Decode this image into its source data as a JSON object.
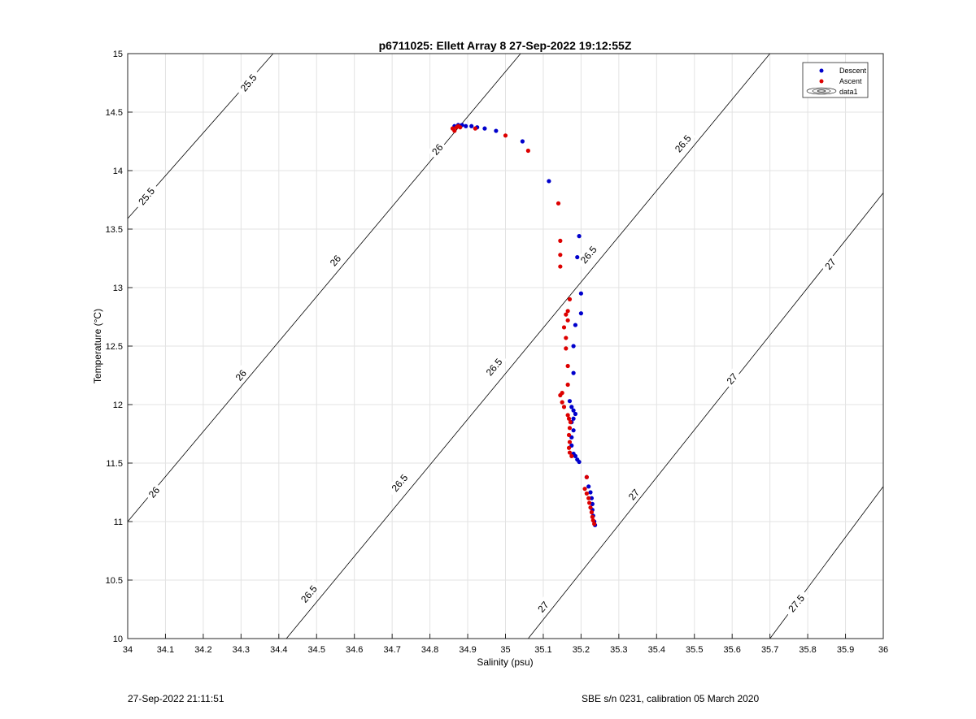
{
  "chart_data": {
    "type": "scatter",
    "title": "p6711025: Ellett Array 8 27-Sep-2022 19:12:55Z",
    "xlabel": "Salinity (psu)",
    "ylabel": "Temperature (°C)",
    "xlim": [
      34,
      36
    ],
    "ylim": [
      10,
      15
    ],
    "x_ticks": [
      "34",
      "34.1",
      "34.2",
      "34.3",
      "34.4",
      "34.5",
      "34.6",
      "34.7",
      "34.8",
      "34.9",
      "35",
      "35.1",
      "35.2",
      "35.3",
      "35.4",
      "35.5",
      "35.6",
      "35.7",
      "35.8",
      "35.9",
      "36"
    ],
    "y_ticks": [
      "10",
      "10.5",
      "11",
      "11.5",
      "12",
      "12.5",
      "13",
      "13.5",
      "14",
      "14.5",
      "15"
    ],
    "grid": true,
    "legend_position": "top-right",
    "legend": [
      "Descent",
      "Ascent",
      "data1"
    ],
    "colors": {
      "descent": "#0000cc",
      "ascent": "#dd0000",
      "contour": "#000000",
      "grid": "#e3e3e3"
    },
    "series": [
      {
        "name": "Descent",
        "points": [
          [
            34.865,
            14.38
          ],
          [
            34.875,
            14.39
          ],
          [
            34.885,
            14.39
          ],
          [
            34.895,
            14.38
          ],
          [
            34.91,
            14.38
          ],
          [
            34.925,
            14.37
          ],
          [
            34.945,
            14.36
          ],
          [
            34.975,
            14.34
          ],
          [
            35.045,
            14.25
          ],
          [
            35.115,
            13.91
          ],
          [
            35.195,
            13.44
          ],
          [
            35.19,
            13.26
          ],
          [
            35.2,
            12.95
          ],
          [
            35.2,
            12.78
          ],
          [
            35.185,
            12.68
          ],
          [
            35.18,
            12.5
          ],
          [
            35.18,
            12.27
          ],
          [
            35.17,
            12.03
          ],
          [
            35.175,
            11.98
          ],
          [
            35.18,
            11.95
          ],
          [
            35.185,
            11.92
          ],
          [
            35.18,
            11.88
          ],
          [
            35.175,
            11.85
          ],
          [
            35.18,
            11.78
          ],
          [
            35.175,
            11.72
          ],
          [
            35.175,
            11.65
          ],
          [
            35.18,
            11.58
          ],
          [
            35.185,
            11.56
          ],
          [
            35.19,
            11.53
          ],
          [
            35.195,
            11.51
          ],
          [
            35.215,
            11.38
          ],
          [
            35.22,
            11.3
          ],
          [
            35.225,
            11.25
          ],
          [
            35.228,
            11.2
          ],
          [
            35.23,
            11.15
          ],
          [
            35.23,
            11.1
          ],
          [
            35.232,
            11.05
          ],
          [
            35.235,
            11.0
          ],
          [
            35.237,
            10.97
          ]
        ]
      },
      {
        "name": "Ascent",
        "points": [
          [
            34.86,
            14.36
          ],
          [
            34.865,
            14.34
          ],
          [
            34.87,
            14.37
          ],
          [
            34.875,
            14.38
          ],
          [
            34.88,
            14.37
          ],
          [
            34.92,
            14.36
          ],
          [
            35.0,
            14.3
          ],
          [
            35.06,
            14.17
          ],
          [
            35.14,
            13.72
          ],
          [
            35.145,
            13.4
          ],
          [
            35.145,
            13.28
          ],
          [
            35.145,
            13.18
          ],
          [
            35.17,
            12.9
          ],
          [
            35.165,
            12.8
          ],
          [
            35.16,
            12.77
          ],
          [
            35.165,
            12.72
          ],
          [
            35.155,
            12.66
          ],
          [
            35.16,
            12.57
          ],
          [
            35.16,
            12.48
          ],
          [
            35.165,
            12.33
          ],
          [
            35.165,
            12.17
          ],
          [
            35.15,
            12.1
          ],
          [
            35.145,
            12.08
          ],
          [
            35.15,
            12.02
          ],
          [
            35.155,
            11.98
          ],
          [
            35.165,
            11.91
          ],
          [
            35.168,
            11.88
          ],
          [
            35.172,
            11.85
          ],
          [
            35.17,
            11.8
          ],
          [
            35.168,
            11.74
          ],
          [
            35.17,
            11.68
          ],
          [
            35.168,
            11.63
          ],
          [
            35.17,
            11.59
          ],
          [
            35.175,
            11.56
          ],
          [
            35.215,
            11.38
          ],
          [
            35.21,
            11.28
          ],
          [
            35.215,
            11.24
          ],
          [
            35.22,
            11.2
          ],
          [
            35.222,
            11.16
          ],
          [
            35.225,
            11.12
          ],
          [
            35.228,
            11.08
          ],
          [
            35.23,
            11.04
          ],
          [
            35.232,
            11.01
          ],
          [
            35.235,
            10.98
          ]
        ]
      }
    ],
    "contour_lines": [
      {
        "level": "25.5",
        "points": [
          [
            34.0,
            13.59
          ],
          [
            34.385,
            15.0
          ]
        ]
      },
      {
        "level": "26",
        "points": [
          [
            34.0,
            11.0
          ],
          [
            35.04,
            15.0
          ]
        ]
      },
      {
        "level": "26.5",
        "points": [
          [
            34.42,
            10.0
          ],
          [
            35.7,
            15.0
          ]
        ]
      },
      {
        "level": "27",
        "points": [
          [
            35.06,
            10.0
          ],
          [
            36.0,
            13.81
          ]
        ]
      },
      {
        "level": "27.5",
        "points": [
          [
            35.7,
            10.0
          ],
          [
            36.0,
            11.3
          ]
        ]
      }
    ],
    "contour_labels": [
      {
        "text": "25.5",
        "at": [
          34.32,
          14.75
        ]
      },
      {
        "text": "25.5",
        "at": [
          34.05,
          13.78
        ]
      },
      {
        "text": "26",
        "at": [
          34.82,
          14.18
        ]
      },
      {
        "text": "26",
        "at": [
          34.55,
          13.23
        ]
      },
      {
        "text": "26",
        "at": [
          34.3,
          12.25
        ]
      },
      {
        "text": "26",
        "at": [
          34.07,
          11.25
        ]
      },
      {
        "text": "26.5",
        "at": [
          35.47,
          14.23
        ]
      },
      {
        "text": "26.5",
        "at": [
          35.22,
          13.28
        ]
      },
      {
        "text": "26.5",
        "at": [
          34.97,
          12.32
        ]
      },
      {
        "text": "26.5",
        "at": [
          34.72,
          11.33
        ]
      },
      {
        "text": "26.5",
        "at": [
          34.48,
          10.38
        ]
      },
      {
        "text": "27",
        "at": [
          35.86,
          13.2
        ]
      },
      {
        "text": "27",
        "at": [
          35.6,
          12.22
        ]
      },
      {
        "text": "27",
        "at": [
          35.34,
          11.23
        ]
      },
      {
        "text": "27",
        "at": [
          35.1,
          10.27
        ]
      },
      {
        "text": "27.5",
        "at": [
          35.77,
          10.3
        ]
      }
    ]
  },
  "footer": {
    "left": "27-Sep-2022 21:11:51",
    "right": "SBE s/n 0231, calibration 05 March 2020"
  }
}
